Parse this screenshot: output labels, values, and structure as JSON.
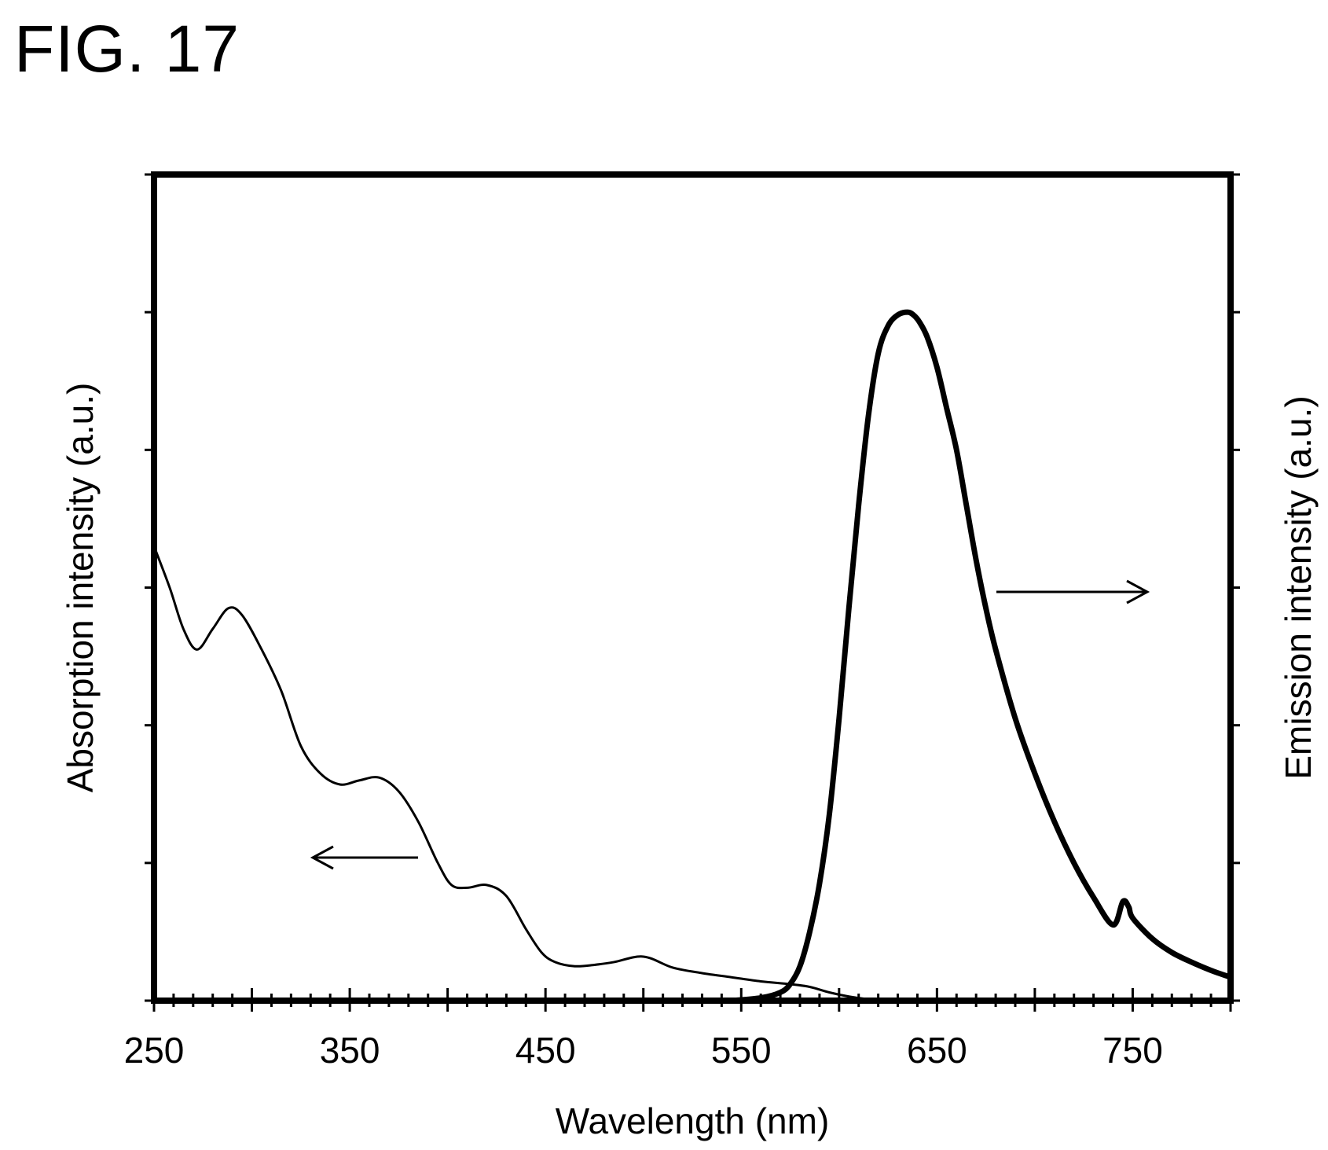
{
  "figure_label": "FIG. 17",
  "chart_data": {
    "type": "line",
    "title": "",
    "xlabel": "Wavelength (nm)",
    "ylabel_left": "Absorption intensity (a.u.)",
    "ylabel_right": "Emission intensity (a.u.)",
    "xlim": [
      250,
      800
    ],
    "ylim": [
      0,
      6
    ],
    "x_ticks": [
      250,
      350,
      450,
      550,
      650,
      750
    ],
    "x_tick_labels": [
      "250",
      "350",
      "450",
      "550",
      "650",
      "750"
    ],
    "grid": false,
    "legend": "none",
    "series": [
      {
        "axis": "left",
        "x": [
          250,
          258,
          265,
          272,
          280,
          288,
          295,
          305,
          315,
          325,
          335,
          345,
          355,
          365,
          375,
          385,
          395,
          402,
          410,
          420,
          430,
          440,
          448,
          455,
          465,
          475,
          485,
          500,
          515,
          530,
          545,
          560,
          575,
          585,
          595,
          605,
          615,
          625
        ],
        "y": [
          3.3,
          3.0,
          2.7,
          2.55,
          2.7,
          2.85,
          2.8,
          2.55,
          2.25,
          1.85,
          1.65,
          1.57,
          1.6,
          1.62,
          1.52,
          1.3,
          1.0,
          0.84,
          0.82,
          0.84,
          0.76,
          0.52,
          0.35,
          0.28,
          0.25,
          0.26,
          0.28,
          0.32,
          0.24,
          0.2,
          0.17,
          0.14,
          0.12,
          0.1,
          0.06,
          0.03,
          0.01,
          0.0
        ]
      },
      {
        "axis": "right",
        "x": [
          545,
          560,
          570,
          575,
          580,
          585,
          590,
          595,
          600,
          605,
          610,
          615,
          620,
          625,
          630,
          635,
          638,
          641,
          645,
          650,
          655,
          660,
          665,
          670,
          675,
          680,
          690,
          700,
          710,
          720,
          730,
          740,
          745,
          748,
          750,
          760,
          770,
          780,
          790,
          800
        ],
        "y": [
          0.0,
          0.02,
          0.06,
          0.12,
          0.25,
          0.5,
          0.85,
          1.35,
          2.05,
          2.85,
          3.6,
          4.25,
          4.7,
          4.9,
          4.98,
          5.0,
          4.98,
          4.93,
          4.82,
          4.6,
          4.3,
          4.0,
          3.6,
          3.2,
          2.85,
          2.55,
          2.05,
          1.65,
          1.3,
          1.0,
          0.75,
          0.55,
          0.72,
          0.68,
          0.6,
          0.45,
          0.35,
          0.28,
          0.22,
          0.17
        ]
      }
    ],
    "annotations": [
      {
        "type": "arrow",
        "direction": "left",
        "meaning": "left axis"
      },
      {
        "type": "arrow",
        "direction": "right",
        "meaning": "right axis"
      }
    ]
  }
}
